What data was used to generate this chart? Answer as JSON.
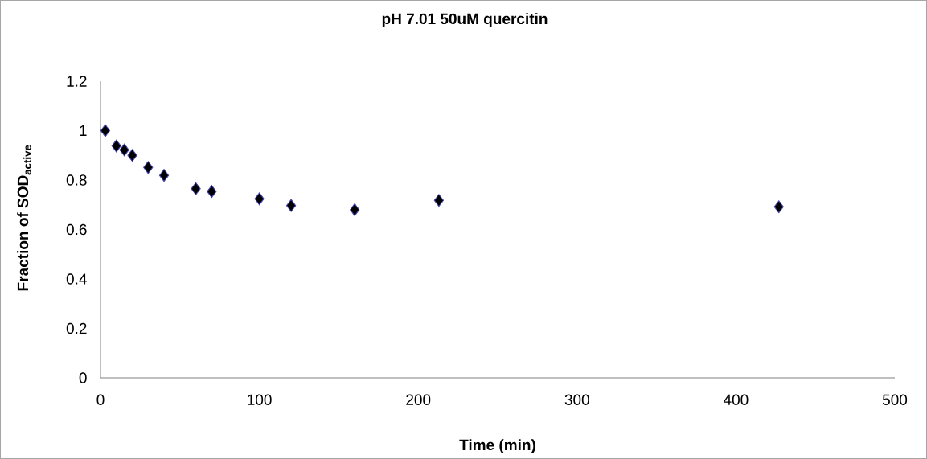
{
  "chart_data": {
    "type": "scatter",
    "title": "pH 7.01 50uM quercitin",
    "xlabel": "Time (min)",
    "ylabel": "Fraction of SOD$_{active}$",
    "x": [
      3,
      10,
      15,
      20,
      30,
      40,
      60,
      70,
      100,
      120,
      160,
      213,
      427
    ],
    "series": [
      {
        "color": "#000000",
        "values": [
          1.0,
          0.938,
          0.922,
          0.9,
          0.851,
          0.819,
          0.765,
          0.754,
          0.724,
          0.697,
          0.68,
          0.718,
          0.692
        ]
      }
    ],
    "xlim": [
      0,
      500
    ],
    "xticks": [
      0,
      100,
      200,
      300,
      400,
      500
    ],
    "ylim": [
      0,
      1.2
    ],
    "yticks": [
      0,
      0.2,
      0.4,
      0.6,
      0.8,
      1,
      1.2
    ],
    "grid": false,
    "marker": "diamond"
  }
}
